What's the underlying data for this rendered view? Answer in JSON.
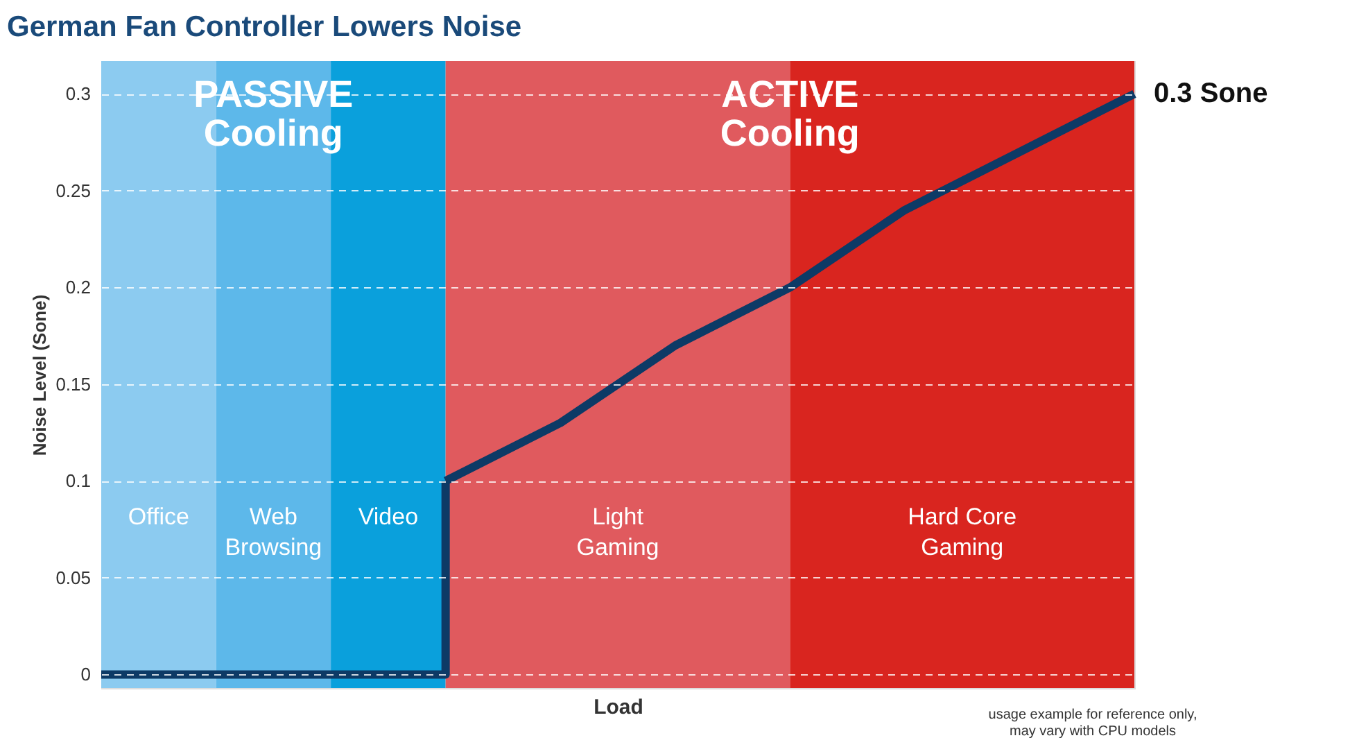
{
  "chart_data": {
    "type": "line",
    "title": "German Fan Controller Lowers Noise",
    "xlabel": "Load",
    "ylabel": "Noise Level (Sone)",
    "categories": [
      null,
      null,
      null,
      null,
      null,
      null,
      null,
      null,
      null,
      null
    ],
    "ylim": [
      -0.007,
      0.317
    ],
    "yticks": [
      0,
      0.05,
      0.1,
      0.15,
      0.2,
      0.25,
      0.3
    ],
    "tick_labels": "y",
    "grid": "y",
    "marker": "none",
    "line_style": "solid",
    "series": [
      {
        "type": "step",
        "color": "#0d3a66",
        "values": [
          0,
          0,
          0,
          0.1,
          null,
          null,
          null,
          null,
          null,
          null
        ]
      },
      {
        "color": "#0d3a66",
        "values": [
          null,
          null,
          null,
          0.1,
          0.13,
          0.17,
          0.2,
          0.24,
          0.27,
          0.3
        ]
      }
    ],
    "annotations": [
      "PASSIVE\nCooling",
      "ACTIVE\nCooling",
      "Office",
      "Web\nBrowsing",
      "Video",
      "Light\nGaming",
      "Hard Core\nGaming",
      "0.3 Sone",
      "usage example for reference only,\nmay vary with CPU models"
    ]
  }
}
